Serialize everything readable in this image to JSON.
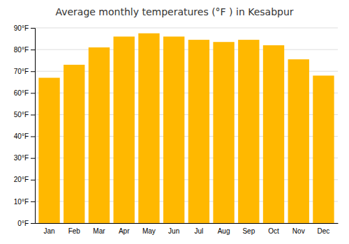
{
  "chart_data": {
    "type": "bar",
    "title": "Average monthly temperatures (°F ) in Kesabpur",
    "categories": [
      "Jan",
      "Feb",
      "Mar",
      "Apr",
      "May",
      "Jun",
      "Jul",
      "Aug",
      "Sep",
      "Oct",
      "Nov",
      "Dec"
    ],
    "values": [
      67,
      73,
      81,
      86,
      87.5,
      86,
      84.5,
      83.5,
      84.5,
      82,
      75.5,
      68
    ],
    "color": "#FFB800",
    "ylim": [
      0,
      90
    ],
    "yticks": [
      {
        "value": 0,
        "label": "0°F"
      },
      {
        "value": 10,
        "label": "10°F"
      },
      {
        "value": 20,
        "label": "20°F"
      },
      {
        "value": 30,
        "label": "30°F"
      },
      {
        "value": 40,
        "label": "40°F"
      },
      {
        "value": 50,
        "label": "50°F"
      },
      {
        "value": 60,
        "label": "60°F"
      },
      {
        "value": 70,
        "label": "70°F"
      },
      {
        "value": 80,
        "label": "80°F"
      },
      {
        "value": 90,
        "label": "90°F"
      }
    ],
    "grid": true
  }
}
